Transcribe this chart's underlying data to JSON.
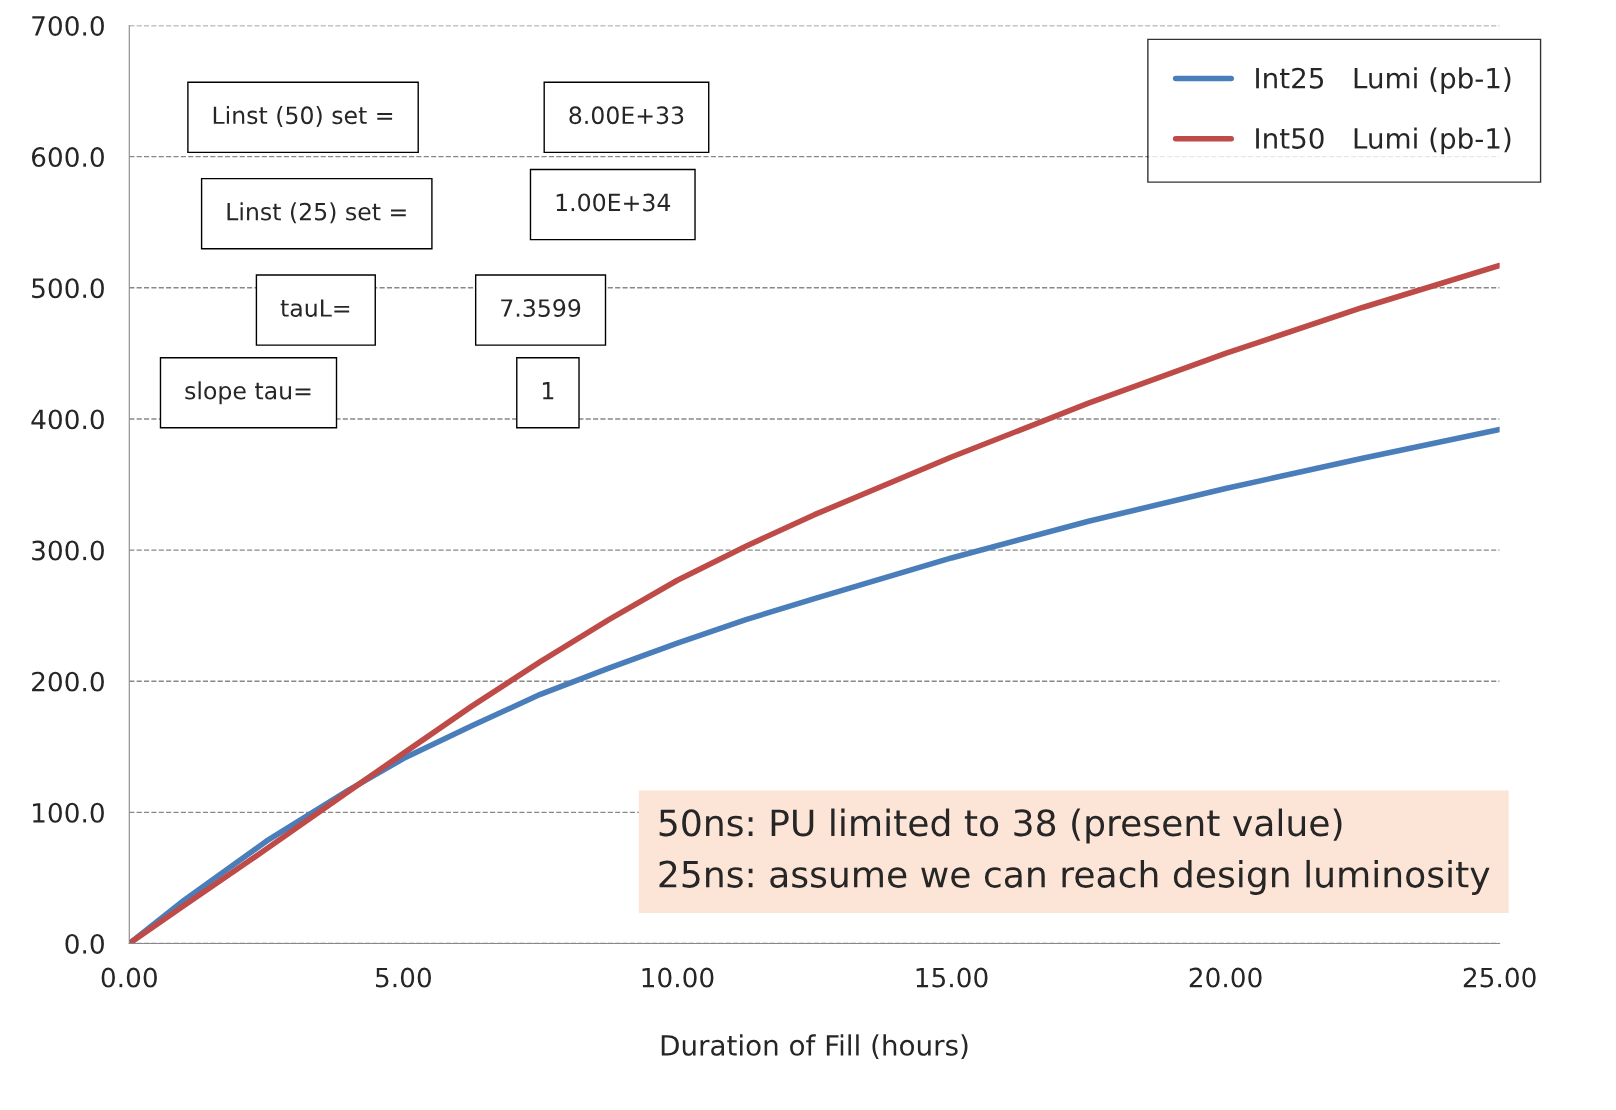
{
  "chart_data": {
    "type": "line",
    "xlabel": "Duration of Fill (hours)",
    "x": [
      0,
      1,
      2.5,
      4,
      5,
      6.25,
      7.5,
      8.75,
      10,
      11.25,
      12.5,
      15,
      17.5,
      20,
      22.5,
      25
    ],
    "series": [
      {
        "name": "Int25   Lumi (pb-1)",
        "color": "#4a7ebb",
        "values": [
          0,
          33,
          78,
          117,
          141,
          166,
          190,
          210,
          229,
          247,
          263,
          294,
          322,
          347,
          370,
          392
        ]
      },
      {
        "name": "Int50   Lumi (pb-1)",
        "color": "#be4b48",
        "values": [
          0,
          29,
          72,
          116,
          145,
          181,
          215,
          247,
          277,
          303,
          327,
          371,
          412,
          450,
          485,
          517
        ]
      }
    ],
    "xlim": [
      0,
      25
    ],
    "xticks": [
      {
        "value": 0,
        "label": "0.00"
      },
      {
        "value": 5,
        "label": "5.00"
      },
      {
        "value": 10,
        "label": "10.00"
      },
      {
        "value": 15,
        "label": "15.00"
      },
      {
        "value": 20,
        "label": "20.00"
      },
      {
        "value": 25,
        "label": "25.00"
      }
    ],
    "ylim": [
      0,
      700
    ],
    "yticks": [
      {
        "value": 0,
        "label": "0.0"
      },
      {
        "value": 100,
        "label": "100.0"
      },
      {
        "value": 200,
        "label": "200.0"
      },
      {
        "value": 300,
        "label": "300.0"
      },
      {
        "value": 400,
        "label": "400.0"
      },
      {
        "value": 500,
        "label": "500.0"
      },
      {
        "value": 600,
        "label": "600.0"
      },
      {
        "value": 700,
        "label": "700.0"
      }
    ],
    "grid": "y",
    "legend": "top right",
    "marker": "none",
    "line_style": "solid",
    "annotations": [
      "Linst (50) set =",
      "8.00E+33",
      "Linst (25) set =",
      "1.00E+34",
      "tauL=",
      "7.3599",
      "slope tau=",
      "1",
      "50ns: PU limited to 38 (present value)\n25ns: assume we can reach design luminosity"
    ]
  }
}
